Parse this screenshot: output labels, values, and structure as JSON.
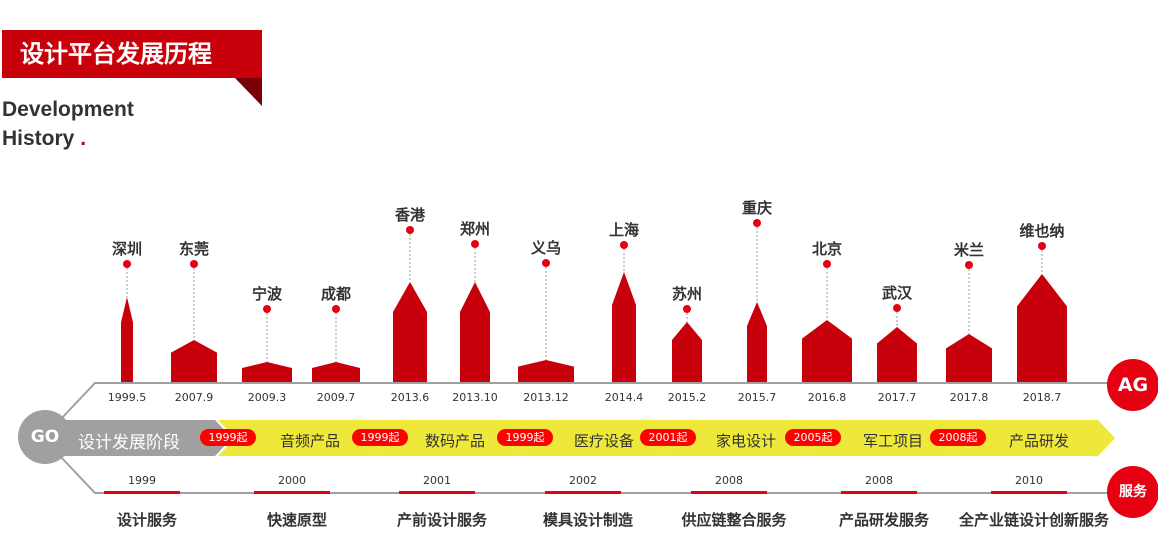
{
  "header": {
    "title": "设计平台发展历程",
    "subtitle_line1": "Development",
    "subtitle_line2": "History",
    "subtitle_dot": "."
  },
  "cities": [
    {
      "name": "深圳",
      "date": "1999.5"
    },
    {
      "name": "东莞",
      "date": "2007.9"
    },
    {
      "name": "宁波",
      "date": "2009.3"
    },
    {
      "name": "成都",
      "date": "2009.7"
    },
    {
      "name": "香港",
      "date": "2013.6"
    },
    {
      "name": "郑州",
      "date": "2013.10"
    },
    {
      "name": "义乌",
      "date": "2013.12"
    },
    {
      "name": "上海",
      "date": "2014.4"
    },
    {
      "name": "苏州",
      "date": "2015.2"
    },
    {
      "name": "重庆",
      "date": "2015.7"
    },
    {
      "name": "北京",
      "date": "2016.8"
    },
    {
      "name": "武汉",
      "date": "2017.7"
    },
    {
      "name": "米兰",
      "date": "2017.8"
    },
    {
      "name": "维也纳",
      "date": "2018.7"
    }
  ],
  "go_label": "GO",
  "ag_label": "AG",
  "service_badge": "服务",
  "stage_header": "设计发展阶段",
  "stages": [
    {
      "since": "1999起",
      "label": "音频产品"
    },
    {
      "since": "1999起",
      "label": "数码产品"
    },
    {
      "since": "1999起",
      "label": "医疗设备"
    },
    {
      "since": "2001起",
      "label": "家电设计"
    },
    {
      "since": "2005起",
      "label": "军工项目"
    },
    {
      "since": "2008起",
      "label": "产品研发"
    }
  ],
  "services": [
    {
      "year": "1999",
      "label": "设计服务"
    },
    {
      "year": "2000",
      "label": "快速原型"
    },
    {
      "year": "2001",
      "label": "产前设计服务"
    },
    {
      "year": "2002",
      "label": "模具设计制造"
    },
    {
      "year": "2008",
      "label": "供应链整合服务"
    },
    {
      "year": "2008",
      "label": "产品研发服务"
    },
    {
      "year": "2010",
      "label": "全产业链设计创新服务"
    }
  ],
  "colors": {
    "red": "#c8000b",
    "pill": "#ff0000",
    "yellow": "#eee83a",
    "gray": "#a0a0a0",
    "badge": "#e60012"
  }
}
